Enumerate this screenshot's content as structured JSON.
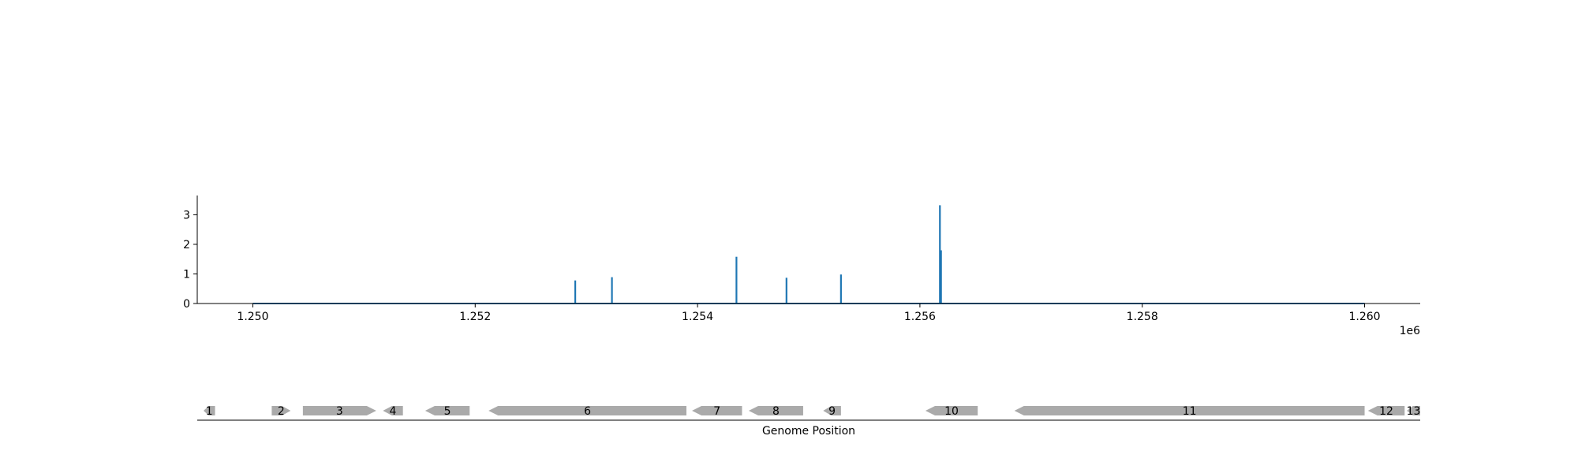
{
  "chart_data": [
    {
      "type": "line",
      "x_offset_label": "1e6",
      "xlim": [
        1249500,
        1260500
      ],
      "ylim": [
        0,
        3.65
      ],
      "x_ticks": [
        {
          "value": 1250000,
          "label": "1.250"
        },
        {
          "value": 1252000,
          "label": "1.252"
        },
        {
          "value": 1254000,
          "label": "1.254"
        },
        {
          "value": 1256000,
          "label": "1.256"
        },
        {
          "value": 1258000,
          "label": "1.258"
        },
        {
          "value": 1260000,
          "label": "1.260"
        }
      ],
      "y_ticks": [
        {
          "value": 0,
          "label": "0"
        },
        {
          "value": 1,
          "label": "1"
        },
        {
          "value": 2,
          "label": "2"
        },
        {
          "value": 3,
          "label": "3"
        }
      ],
      "series_color": "#1f77b4",
      "baseline": {
        "x": [
          1250000,
          1260000
        ],
        "y": 0
      },
      "peaks": [
        {
          "x": 1252900,
          "y": 0.78
        },
        {
          "x": 1253230,
          "y": 0.89
        },
        {
          "x": 1254350,
          "y": 1.58
        },
        {
          "x": 1254800,
          "y": 0.87
        },
        {
          "x": 1255290,
          "y": 0.98
        },
        {
          "x": 1256180,
          "y": 3.32
        },
        {
          "x": 1256190,
          "y": 1.8
        }
      ],
      "grid": false
    },
    {
      "type": "gene_track",
      "xlabel": "Genome Position",
      "gene_color": "#aaaaaa",
      "genes": [
        {
          "label": "1",
          "start": 1249460,
          "end": 1249660,
          "strand": -1
        },
        {
          "label": "2",
          "start": 1250170,
          "end": 1250340,
          "strand": 1
        },
        {
          "label": "3",
          "start": 1250450,
          "end": 1251110,
          "strand": 1
        },
        {
          "label": "4",
          "start": 1251170,
          "end": 1251350,
          "strand": -1
        },
        {
          "label": "5",
          "start": 1251550,
          "end": 1251950,
          "strand": -1
        },
        {
          "label": "6",
          "start": 1252120,
          "end": 1253900,
          "strand": -1
        },
        {
          "label": "7",
          "start": 1253950,
          "end": 1254400,
          "strand": -1
        },
        {
          "label": "8",
          "start": 1254460,
          "end": 1254950,
          "strand": -1
        },
        {
          "label": "9",
          "start": 1255130,
          "end": 1255290,
          "strand": -1
        },
        {
          "label": "10",
          "start": 1256050,
          "end": 1256520,
          "strand": -1
        },
        {
          "label": "11",
          "start": 1256850,
          "end": 1260000,
          "strand": -1
        },
        {
          "label": "12",
          "start": 1260030,
          "end": 1260360,
          "strand": -1
        },
        {
          "label": "13",
          "start": 1260380,
          "end": 1260500,
          "strand": -1
        }
      ]
    }
  ]
}
